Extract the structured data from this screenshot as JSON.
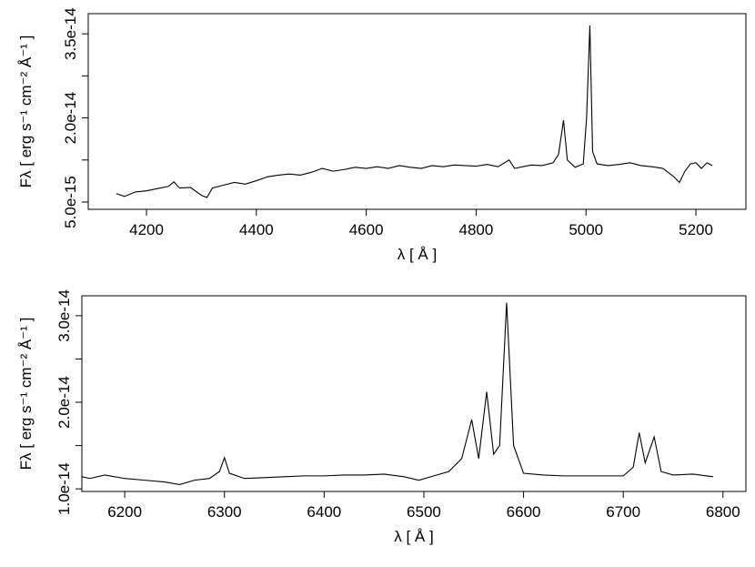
{
  "chart_data": [
    {
      "type": "line",
      "xlabel": "λ [ Å ]",
      "ylabel": "Fλ [ erg s⁻¹ cm⁻² Å⁻¹ ]",
      "xlim": [
        4094,
        5291
      ],
      "ylim": [
        3.7e-15,
        3.86e-14
      ],
      "xticks": [
        4200,
        4400,
        4600,
        4800,
        5000,
        5200
      ],
      "yticks": [
        {
          "value": 5e-15,
          "label": "5.0e-15"
        },
        {
          "value": 1.25e-14,
          "label": null
        },
        {
          "value": 2e-14,
          "label": "2.0e-14"
        },
        {
          "value": 2.75e-14,
          "label": null
        },
        {
          "value": 3.5e-14,
          "label": "3.5e-14"
        }
      ],
      "x": [
        4145,
        4160,
        4180,
        4200,
        4220,
        4240,
        4250,
        4260,
        4280,
        4300,
        4310,
        4320,
        4340,
        4360,
        4380,
        4400,
        4420,
        4440,
        4460,
        4480,
        4500,
        4520,
        4540,
        4560,
        4580,
        4600,
        4620,
        4640,
        4660,
        4680,
        4700,
        4720,
        4740,
        4760,
        4780,
        4800,
        4820,
        4840,
        4860,
        4870,
        4900,
        4920,
        4940,
        4950,
        4959,
        4966,
        4980,
        4995,
        5001,
        5007,
        5012,
        5020,
        5040,
        5060,
        5080,
        5100,
        5120,
        5140,
        5160,
        5170,
        5180,
        5190,
        5200,
        5210,
        5220,
        5230
      ],
      "series": [
        {
          "color": "#000000",
          "values": [
            6.5e-15,
            6e-15,
            6.8e-15,
            7e-15,
            7.4e-15,
            7.8e-15,
            8.6e-15,
            7.5e-15,
            7.6e-15,
            6.2e-15,
            5.8e-15,
            7.5e-15,
            8e-15,
            8.5e-15,
            8.2e-15,
            8.8e-15,
            9.5e-15,
            9.8e-15,
            1e-14,
            9.8e-15,
            1.03e-14,
            1.1e-14,
            1.05e-14,
            1.08e-14,
            1.12e-14,
            1.1e-14,
            1.13e-14,
            1.1e-14,
            1.15e-14,
            1.12e-14,
            1.1e-14,
            1.15e-14,
            1.13e-14,
            1.16e-14,
            1.15e-14,
            1.14e-14,
            1.17e-14,
            1.13e-14,
            1.25e-14,
            1.1e-14,
            1.16e-14,
            1.15e-14,
            1.2e-14,
            1.35e-14,
            1.96e-14,
            1.25e-14,
            1.12e-14,
            1.18e-14,
            2e-14,
            3.65e-14,
            1.4e-14,
            1.18e-14,
            1.15e-14,
            1.17e-14,
            1.2e-14,
            1.15e-14,
            1.13e-14,
            1.1e-14,
            9.5e-15,
            8.5e-15,
            1.05e-14,
            1.18e-14,
            1.2e-14,
            1.1e-14,
            1.2e-14,
            1.15e-14
          ]
        }
      ]
    },
    {
      "type": "line",
      "xlabel": "λ [ Å ]",
      "ylabel": "Fλ [ erg s⁻¹ cm⁻² Å⁻¹ ]",
      "xlim": [
        6157,
        6823
      ],
      "ylim": [
        9.7e-15,
        3.23e-14
      ],
      "xticks": [
        6200,
        6300,
        6400,
        6500,
        6600,
        6700,
        6800
      ],
      "yticks": [
        {
          "value": 1e-14,
          "label": "1.0e-14"
        },
        {
          "value": 1.5e-14,
          "label": null
        },
        {
          "value": 2e-14,
          "label": "2.0e-14"
        },
        {
          "value": 2.5e-14,
          "label": null
        },
        {
          "value": 3e-14,
          "label": "3.0e-14"
        }
      ],
      "x": [
        6157,
        6165,
        6180,
        6200,
        6220,
        6240,
        6255,
        6270,
        6285,
        6295,
        6300,
        6305,
        6320,
        6340,
        6360,
        6380,
        6400,
        6420,
        6440,
        6460,
        6480,
        6495,
        6510,
        6525,
        6538,
        6548,
        6555,
        6563,
        6570,
        6576,
        6583,
        6590,
        6600,
        6620,
        6640,
        6660,
        6680,
        6700,
        6710,
        6716,
        6722,
        6731,
        6738,
        6750,
        6770,
        6790
      ],
      "series": [
        {
          "color": "#000000",
          "values": [
            1.14e-14,
            1.12e-14,
            1.16e-14,
            1.12e-14,
            1.1e-14,
            1.08e-14,
            1.05e-14,
            1.1e-14,
            1.12e-14,
            1.2e-14,
            1.36e-14,
            1.18e-14,
            1.12e-14,
            1.13e-14,
            1.14e-14,
            1.15e-14,
            1.15e-14,
            1.16e-14,
            1.16e-14,
            1.17e-14,
            1.14e-14,
            1.1e-14,
            1.15e-14,
            1.2e-14,
            1.35e-14,
            1.8e-14,
            1.35e-14,
            2.12e-14,
            1.4e-14,
            1.5e-14,
            3.15e-14,
            1.5e-14,
            1.18e-14,
            1.16e-14,
            1.15e-14,
            1.15e-14,
            1.15e-14,
            1.15e-14,
            1.25e-14,
            1.65e-14,
            1.3e-14,
            1.6e-14,
            1.2e-14,
            1.16e-14,
            1.17e-14,
            1.14e-14
          ]
        }
      ]
    }
  ]
}
